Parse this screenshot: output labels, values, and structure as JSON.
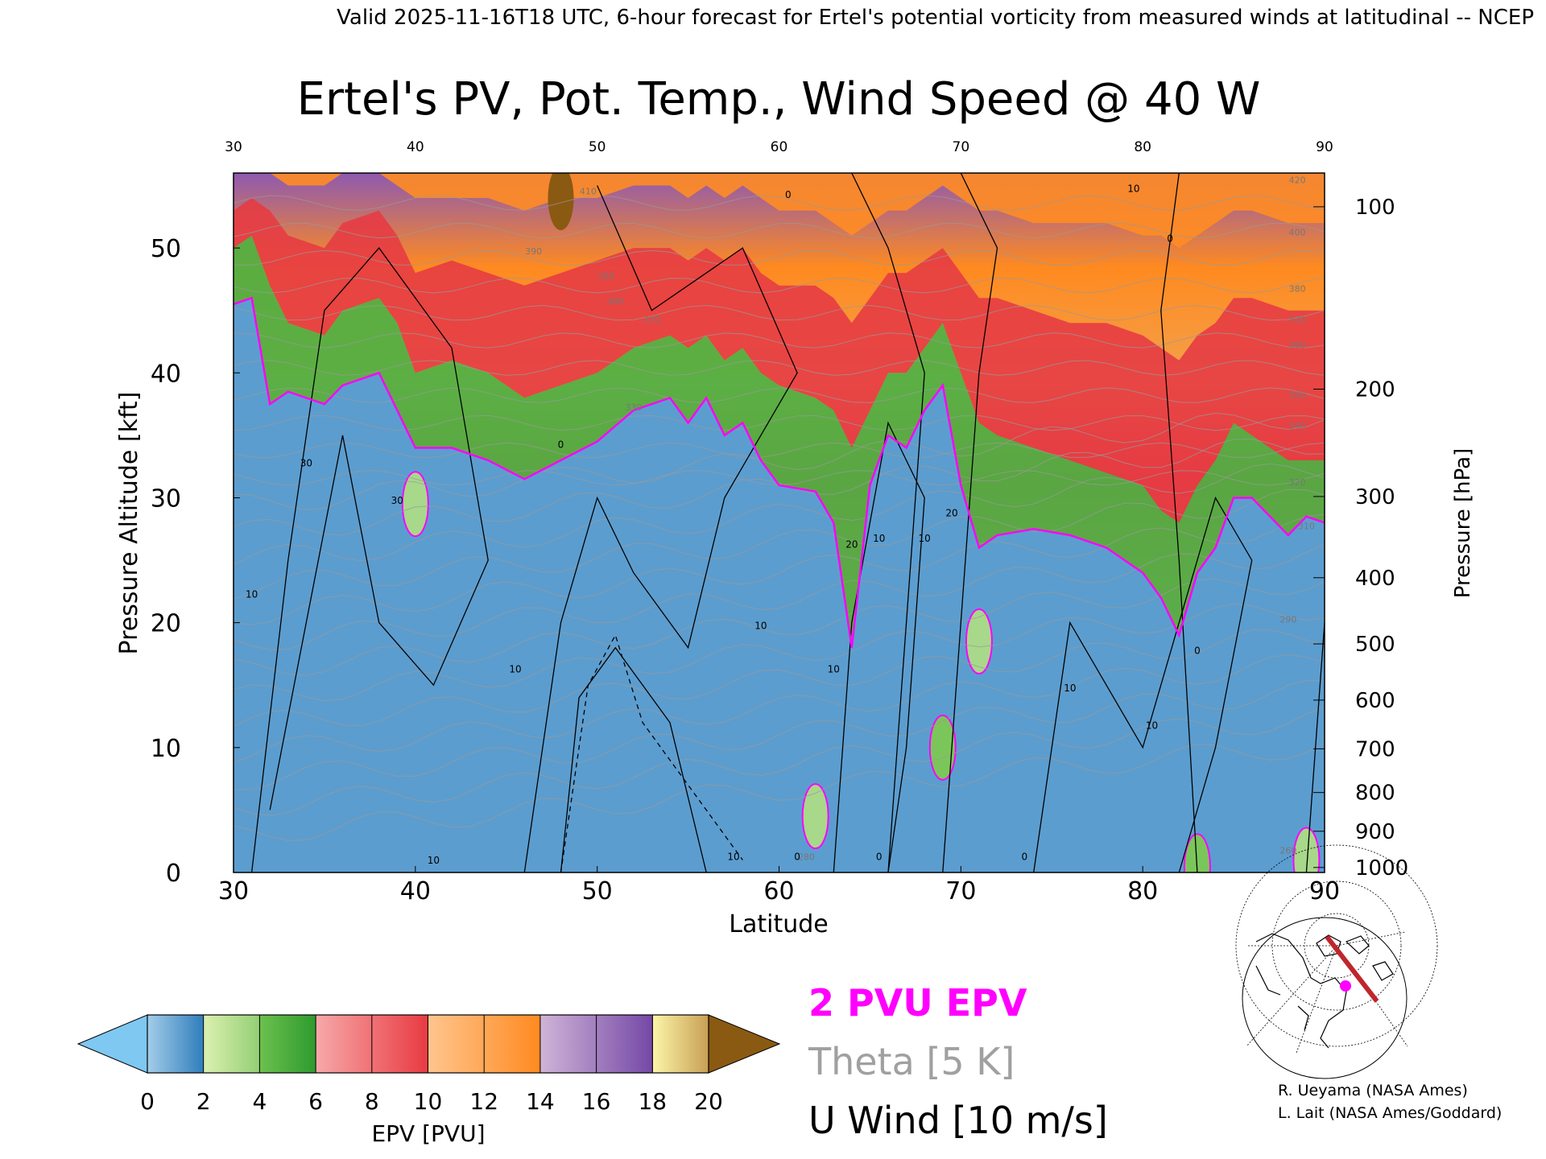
{
  "header": {
    "valid_line": "Valid 2025-11-16T18 UTC, 6-hour forecast for Ertel's potential vorticity from measured winds at latitudinal -- NCEP"
  },
  "chart_data": {
    "type": "heatmap",
    "title": "Ertel's PV, Pot. Temp., Wind Speed @ 40 W",
    "xlabel": "Latitude",
    "ylabel_left": "Pressure Altitude [kft]",
    "ylabel_right": "Pressure [hPa]",
    "xlim": [
      30,
      90
    ],
    "ylim": [
      0,
      56
    ],
    "x_ticks": [
      "30",
      "40",
      "50",
      "60",
      "70",
      "80",
      "90"
    ],
    "y_ticks_left": [
      "0",
      "10",
      "20",
      "30",
      "40",
      "50"
    ],
    "y_ticks_right": [
      {
        "label": "100",
        "kft": 53.3
      },
      {
        "label": "200",
        "kft": 38.7
      },
      {
        "label": "300",
        "kft": 30.1
      },
      {
        "label": "400",
        "kft": 23.6
      },
      {
        "label": "500",
        "kft": 18.3
      },
      {
        "label": "600",
        "kft": 13.8
      },
      {
        "label": "700",
        "kft": 9.9
      },
      {
        "label": "800",
        "kft": 6.4
      },
      {
        "label": "900",
        "kft": 3.3
      },
      {
        "label": "1000",
        "kft": 0.4
      }
    ],
    "tropopause_2pvu_kft": {
      "lat": [
        30,
        31,
        32,
        33,
        35,
        36,
        38,
        39,
        40,
        42,
        44,
        46,
        48,
        50,
        52,
        54,
        55,
        56,
        57,
        58,
        59,
        60,
        62,
        63,
        64,
        65,
        66,
        67,
        68,
        69,
        70,
        71,
        72,
        74,
        76,
        78,
        80,
        81,
        82,
        83,
        84,
        85,
        86,
        88,
        89,
        90
      ],
      "alt": [
        45.5,
        46,
        37.5,
        38.5,
        37.5,
        39,
        40,
        37,
        34,
        34,
        33,
        31.5,
        33,
        34.5,
        37,
        38,
        36,
        38,
        35,
        36,
        33,
        31,
        30.5,
        28,
        18,
        31,
        35,
        34,
        37,
        39,
        31,
        26,
        27,
        27.5,
        27,
        26,
        24,
        22,
        19,
        24,
        26,
        30,
        30,
        27,
        28.5,
        28
      ]
    },
    "epv_band_tops_kft": {
      "lat": [
        30,
        31,
        32,
        33,
        35,
        36,
        38,
        39,
        40,
        42,
        44,
        46,
        48,
        50,
        52,
        54,
        55,
        56,
        57,
        58,
        59,
        60,
        62,
        63,
        64,
        65,
        66,
        67,
        68,
        69,
        70,
        71,
        72,
        74,
        76,
        78,
        80,
        81,
        82,
        83,
        84,
        85,
        86,
        88,
        89,
        90
      ],
      "band_2_6": [
        50,
        51,
        47,
        44,
        43,
        45,
        46,
        44,
        40,
        41,
        40,
        38,
        39,
        40,
        42,
        43,
        42,
        43,
        41,
        42,
        40,
        39,
        38,
        37,
        34,
        37,
        40,
        40,
        42,
        44,
        40,
        36,
        35,
        34,
        33,
        32,
        31,
        29,
        28,
        31,
        33,
        36,
        35,
        33,
        33,
        33
      ],
      "band_6_12": [
        53,
        54,
        53,
        51,
        50,
        52,
        53,
        51,
        48,
        49,
        48,
        47,
        48,
        49,
        50,
        50,
        49,
        50,
        49,
        50,
        48,
        47,
        47,
        46,
        44,
        46,
        48,
        48,
        49,
        50,
        48,
        46,
        46,
        45,
        44,
        44,
        43,
        42,
        41,
        43,
        44,
        46,
        46,
        45,
        45,
        45
      ],
      "band_12_16": [
        56,
        56,
        56,
        55,
        55,
        56,
        56,
        55,
        54,
        54,
        54,
        53,
        54,
        54,
        55,
        55,
        54,
        55,
        54,
        55,
        54,
        53,
        53,
        52,
        51,
        52,
        53,
        53,
        54,
        55,
        54,
        53,
        53,
        52,
        52,
        52,
        51,
        51,
        50,
        51,
        52,
        53,
        53,
        52,
        52,
        52
      ]
    },
    "epv_patches": [
      {
        "lat": 69.0,
        "alt": 10.0,
        "epv": 3
      },
      {
        "lat": 71.0,
        "alt": 18.5,
        "epv": 2.5
      },
      {
        "lat": 40.0,
        "alt": 29.5,
        "epv": 2.5
      },
      {
        "lat": 62.0,
        "alt": 4.5,
        "epv": 2.5
      },
      {
        "lat": 83.0,
        "alt": 0.5,
        "epv": 3
      },
      {
        "lat": 89.0,
        "alt": 1.0,
        "epv": 2.5
      },
      {
        "lat": 48.0,
        "alt": 54.0,
        "epv": 20
      }
    ],
    "theta_labels": [
      {
        "lat": 46.5,
        "alt": 49.5,
        "text": "390"
      },
      {
        "lat": 50.5,
        "alt": 47.5,
        "text": "390"
      },
      {
        "lat": 51.0,
        "alt": 45.5,
        "text": "380"
      },
      {
        "lat": 53.0,
        "alt": 44.0,
        "text": "370"
      },
      {
        "lat": 52.0,
        "alt": 37.0,
        "text": "330"
      },
      {
        "lat": 49.5,
        "alt": 54.3,
        "text": "410"
      },
      {
        "lat": 88.5,
        "alt": 55.2,
        "text": "420"
      },
      {
        "lat": 88.5,
        "alt": 51.0,
        "text": "400"
      },
      {
        "lat": 88.5,
        "alt": 46.5,
        "text": "380"
      },
      {
        "lat": 88.5,
        "alt": 44.0,
        "text": "370"
      },
      {
        "lat": 88.5,
        "alt": 42.0,
        "text": "360"
      },
      {
        "lat": 88.5,
        "alt": 38.0,
        "text": "350"
      },
      {
        "lat": 88.5,
        "alt": 35.5,
        "text": "340"
      },
      {
        "lat": 88.5,
        "alt": 31.0,
        "text": "320"
      },
      {
        "lat": 89.0,
        "alt": 27.5,
        "text": "310"
      },
      {
        "lat": 88.0,
        "alt": 20.0,
        "text": "290"
      },
      {
        "lat": 88.0,
        "alt": 1.5,
        "text": "260"
      },
      {
        "lat": 61.5,
        "alt": 1.0,
        "text": "280"
      }
    ],
    "wind_labels": [
      {
        "lat": 34.0,
        "alt": 32.5,
        "text": "30"
      },
      {
        "lat": 39.0,
        "alt": 29.5,
        "text": "30"
      },
      {
        "lat": 31.0,
        "alt": 22.0,
        "text": "10"
      },
      {
        "lat": 41.0,
        "alt": 0.7,
        "text": "10"
      },
      {
        "lat": 45.5,
        "alt": 16.0,
        "text": "10"
      },
      {
        "lat": 48.0,
        "alt": 34.0,
        "text": "0"
      },
      {
        "lat": 59.0,
        "alt": 19.5,
        "text": "10"
      },
      {
        "lat": 61.0,
        "alt": 1.0,
        "text": "0"
      },
      {
        "lat": 57.5,
        "alt": 1.0,
        "text": "10"
      },
      {
        "lat": 64.0,
        "alt": 26.0,
        "text": "20"
      },
      {
        "lat": 65.5,
        "alt": 26.5,
        "text": "10"
      },
      {
        "lat": 65.5,
        "alt": 1.0,
        "text": "0"
      },
      {
        "lat": 68.0,
        "alt": 26.5,
        "text": "10"
      },
      {
        "lat": 69.5,
        "alt": 28.5,
        "text": "20"
      },
      {
        "lat": 73.5,
        "alt": 1.0,
        "text": "0"
      },
      {
        "lat": 76.0,
        "alt": 14.5,
        "text": "10"
      },
      {
        "lat": 80.5,
        "alt": 11.5,
        "text": "10"
      },
      {
        "lat": 83.0,
        "alt": 17.5,
        "text": "0"
      },
      {
        "lat": 63.0,
        "alt": 16.0,
        "text": "10"
      },
      {
        "lat": 60.5,
        "alt": 54.0,
        "text": "0"
      },
      {
        "lat": 79.5,
        "alt": 54.5,
        "text": "10"
      },
      {
        "lat": 81.5,
        "alt": 50.5,
        "text": "0"
      }
    ]
  },
  "colorbar": {
    "label": "EPV [PVU]",
    "ticks": [
      "0",
      "2",
      "4",
      "6",
      "8",
      "10",
      "12",
      "14",
      "16",
      "18",
      "20"
    ],
    "low_extend_color": "#7ec8f2",
    "high_extend_color": "#8a5a12",
    "bands": [
      [
        "#a4cde9",
        "#2f7dbc"
      ],
      [
        "#dcf0b0",
        "#93cf74"
      ],
      [
        "#6cc04e",
        "#2e9b2e"
      ],
      [
        "#f7a9a9",
        "#e83a42"
      ],
      [
        "#ffc58e",
        "#ff8a20"
      ],
      [
        "#d0b4d8",
        "#7448a6"
      ],
      [
        "#fbf5a8",
        "#c89f54"
      ]
    ]
  },
  "legend": {
    "pvu_line": "2 PVU EPV",
    "theta_line": "Theta [5 K]",
    "wind_line": "U Wind [10 m/s]",
    "pvu_color": "#ff00ff",
    "theta_color": "#a0a0a0",
    "wind_color": "#000000"
  },
  "credits": {
    "line1": "R. Ueyama (NASA Ames)",
    "line2": "L. Lait (NASA Ames/Goddard)"
  },
  "map": {
    "marker_color": "#ff00ff",
    "track_color": "#c0262c"
  }
}
